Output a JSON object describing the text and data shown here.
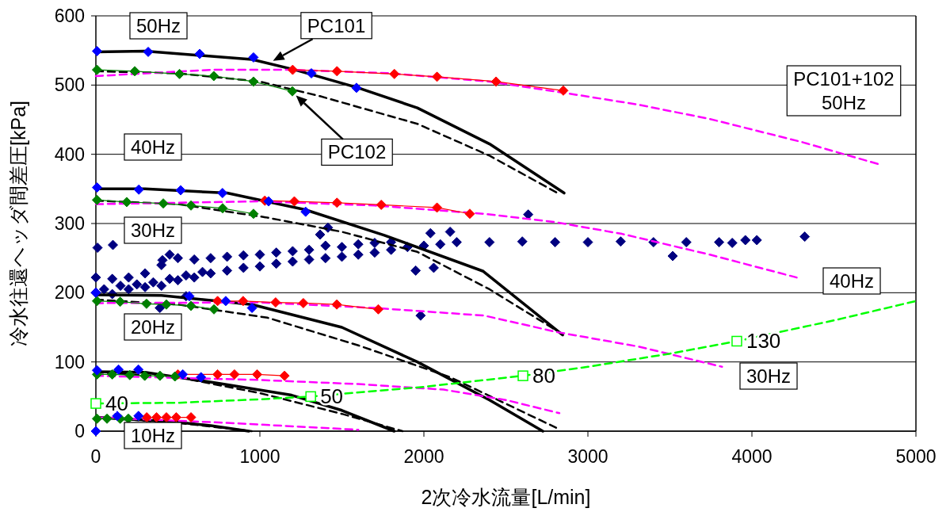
{
  "chart_data": {
    "type": "line",
    "xlabel": "2次冷水流量[L/min]",
    "ylabel": "冷水往還ヘッダ間差圧[kPa]",
    "xlim": [
      0,
      5000
    ],
    "xticks": [
      0,
      1000,
      2000,
      3000,
      4000,
      5000
    ],
    "ylim": [
      0,
      600
    ],
    "yticks": [
      0,
      100,
      200,
      300,
      400,
      500,
      600
    ],
    "grid": "y",
    "series": [
      {
        "type": "scatter",
        "color": "#000080",
        "marker": "diamond",
        "x": [
          0,
          50,
          100,
          150,
          200,
          250,
          300,
          350,
          400,
          450,
          500,
          550,
          600,
          650,
          700,
          800,
          900,
          1000,
          1100,
          1200,
          1300,
          1400,
          1500,
          1600,
          1700,
          1800,
          1900,
          2000,
          2100,
          0,
          100,
          200,
          300,
          400,
          450,
          500,
          600,
          700,
          800,
          900,
          1000,
          1100,
          1200,
          1300,
          1400,
          1500,
          1600,
          1700,
          1800,
          2200,
          2400,
          2600,
          2800,
          3000,
          3200,
          3400,
          3600,
          3800,
          3880,
          10,
          104,
          406,
          390,
          550,
          1950,
          2060,
          2040,
          2160,
          1367,
          1415,
          1980,
          2636,
          3517,
          3960,
          4030,
          4322
        ],
        "values": [
          200,
          205,
          198,
          210,
          205,
          212,
          208,
          215,
          210,
          220,
          218,
          225,
          222,
          230,
          228,
          232,
          236,
          238,
          242,
          245,
          248,
          250,
          252,
          255,
          258,
          262,
          266,
          268,
          270,
          222,
          220,
          222,
          228,
          240,
          255,
          250,
          248,
          250,
          252,
          254,
          255,
          258,
          260,
          262,
          268,
          266,
          270,
          272,
          273,
          273,
          273,
          274,
          273,
          273,
          274,
          273,
          273,
          273,
          272,
          265,
          269,
          247,
          178,
          195,
          232,
          236,
          286,
          288,
          284,
          294,
          167,
          313,
          253,
          276,
          276,
          281
        ]
      },
      {
        "type": "line",
        "color": "#000000",
        "line_style": "solid",
        "marker": "none",
        "x": [
          0,
          300,
          952,
          1215,
          1600,
          1960,
          2400,
          2855
        ],
        "values": [
          548,
          549,
          537,
          522,
          496,
          467,
          415,
          344
        ]
      },
      {
        "type": "line",
        "color": "#000000",
        "line_style": "solid",
        "marker": "none",
        "x": [
          0,
          300,
          800,
          1275,
          1759,
          2362,
          2846
        ],
        "values": [
          350,
          350,
          344,
          320,
          283,
          231,
          139
        ]
      },
      {
        "type": "line",
        "color": "#000000",
        "line_style": "solid",
        "marker": "none",
        "x": [
          0,
          400,
          952,
          1500,
          1960,
          2400,
          2725
        ],
        "values": [
          197,
          196,
          183,
          150,
          100,
          45,
          0
        ]
      },
      {
        "type": "line",
        "color": "#000000",
        "line_style": "solid",
        "marker": "none",
        "x": [
          0,
          300,
          752,
          1193,
          1500,
          1819
        ],
        "values": [
          86,
          85,
          69,
          52,
          30,
          0
        ]
      },
      {
        "type": "line",
        "color": "#000000",
        "line_style": "solid",
        "marker": "none",
        "x": [
          0,
          450,
          700,
          932
        ],
        "values": [
          20,
          14,
          8,
          0
        ]
      },
      {
        "type": "line",
        "color": "#000000",
        "line_style": "dashed",
        "marker": "none",
        "x": [
          0,
          500,
          1000,
          1366,
          1960,
          2400,
          2815
        ],
        "values": [
          520,
          517,
          505,
          484,
          444,
          398,
          344
        ]
      },
      {
        "type": "line",
        "color": "#000000",
        "line_style": "dashed",
        "marker": "none",
        "x": [
          0,
          500,
          1034,
          1500,
          1960,
          2400,
          2846
        ],
        "values": [
          333,
          328,
          309,
          288,
          259,
          205,
          140
        ]
      },
      {
        "type": "line",
        "color": "#000000",
        "line_style": "dashed",
        "marker": "none",
        "x": [
          0,
          500,
          1045,
          1600,
          2160,
          2806
        ],
        "values": [
          190,
          183,
          164,
          124,
          78,
          5
        ]
      },
      {
        "type": "line",
        "color": "#000000",
        "line_style": "dashed",
        "marker": "none",
        "x": [
          0,
          500,
          1000,
          1500,
          1870
        ],
        "values": [
          85,
          78,
          55,
          25,
          0
        ]
      },
      {
        "type": "line",
        "color": "#000000",
        "line_style": "dashed",
        "marker": "none",
        "x": [
          0,
          500,
          950
        ],
        "values": [
          20,
          12,
          0
        ]
      },
      {
        "type": "line",
        "color": "#ff00ff",
        "line_style": "dashed",
        "marker": "none",
        "x": [
          0,
          700,
          1200,
          1800,
          2400,
          2850,
          3300,
          3744,
          4300,
          4783
        ],
        "values": [
          513,
          522,
          522,
          517,
          505,
          489,
          472,
          451,
          418,
          385
        ]
      },
      {
        "type": "line",
        "color": "#ff00ff",
        "line_style": "dashed",
        "marker": "none",
        "x": [
          0,
          1000,
          1700,
          2367,
          2800,
          3208,
          3744,
          4273
        ],
        "values": [
          328,
          332,
          326,
          314,
          302,
          285,
          255,
          222
        ]
      },
      {
        "type": "line",
        "color": "#ff00ff",
        "line_style": "dashed",
        "marker": "none",
        "x": [
          0,
          1000,
          1700,
          2367,
          2815,
          3313,
          3818
        ],
        "values": [
          185,
          186,
          178,
          167,
          143,
          122,
          93
        ]
      },
      {
        "type": "line",
        "color": "#ff00ff",
        "line_style": "dashed",
        "marker": "none",
        "x": [
          0,
          1000,
          1600,
          2120,
          2500,
          2826
        ],
        "values": [
          80,
          74,
          68,
          60,
          45,
          26
        ]
      },
      {
        "type": "line",
        "color": "#ff00ff",
        "line_style": "dashed",
        "marker": "none",
        "x": [
          0,
          800,
          1600
        ],
        "values": [
          20,
          12,
          2
        ]
      },
      {
        "type": "line",
        "color": "#ff0000",
        "line_style": "solid",
        "marker": "diamond",
        "x": [
          1200,
          1470,
          1820,
          2080,
          2440,
          2850
        ],
        "values": [
          522,
          520,
          516,
          512,
          505,
          492
        ]
      },
      {
        "type": "line",
        "color": "#ff0000",
        "line_style": "solid",
        "marker": "diamond",
        "x": [
          1030,
          1210,
          1470,
          1740,
          2080,
          2280
        ],
        "values": [
          333,
          332,
          330,
          327,
          323,
          314
        ]
      },
      {
        "type": "line",
        "color": "#ff0000",
        "line_style": "solid",
        "marker": "diamond",
        "x": [
          742,
          898,
          1096,
          1265,
          1469,
          1722
        ],
        "values": [
          188,
          188,
          186,
          185,
          183,
          176
        ]
      },
      {
        "type": "line",
        "color": "#ff0000",
        "line_style": "solid",
        "marker": "diamond",
        "x": [
          500,
          742,
          845,
          983,
          1150
        ],
        "values": [
          82,
          82,
          82,
          82,
          80
        ]
      },
      {
        "type": "line",
        "color": "#ff0000",
        "line_style": "solid",
        "marker": "diamond",
        "x": [
          310,
          370,
          430,
          490,
          580
        ],
        "values": [
          20,
          20,
          20,
          20,
          20
        ]
      },
      {
        "type": "line",
        "color": "#008000",
        "line_style": "solid",
        "marker": "diamond",
        "x": [
          7,
          237,
          510,
          719,
          961,
          1198
        ],
        "values": [
          522,
          520,
          516,
          513,
          505,
          491
        ]
      },
      {
        "type": "line",
        "color": "#008000",
        "line_style": "solid",
        "marker": "diamond",
        "x": [
          7,
          188,
          411,
          580,
          773,
          961
        ],
        "values": [
          334,
          331,
          329,
          326,
          322,
          314
        ]
      },
      {
        "type": "line",
        "color": "#008000",
        "line_style": "solid",
        "marker": "diamond",
        "x": [
          7,
          148,
          309,
          430,
          580,
          720
        ],
        "values": [
          188,
          187,
          184,
          183,
          181,
          176
        ]
      },
      {
        "type": "line",
        "color": "#008000",
        "line_style": "solid",
        "marker": "diamond",
        "x": [
          7,
          100,
          207,
          298,
          391,
          482
        ],
        "values": [
          82,
          82,
          81,
          80,
          80,
          79
        ]
      },
      {
        "type": "line",
        "color": "#008000",
        "line_style": "solid",
        "marker": "diamond",
        "x": [
          7,
          68,
          148,
          198
        ],
        "values": [
          18,
          18,
          18,
          18
        ]
      },
      {
        "type": "scatter",
        "color": "#0000ff",
        "marker": "diamond",
        "x": [
          7,
          319,
          633,
          961,
          1314,
          1589
        ],
        "values": [
          549,
          548,
          545,
          540,
          517,
          496
        ]
      },
      {
        "type": "scatter",
        "color": "#0000ff",
        "marker": "diamond",
        "x": [
          7,
          262,
          517,
          772,
          1053,
          1279
        ],
        "values": [
          352,
          349,
          348,
          344,
          332,
          317
        ]
      },
      {
        "type": "scatter",
        "color": "#0000ff",
        "marker": "diamond",
        "x": [
          0,
          570,
          792,
          952
        ],
        "values": [
          200,
          195,
          188,
          178
        ]
      },
      {
        "type": "scatter",
        "color": "#0000ff",
        "marker": "diamond",
        "x": [
          7,
          138,
          259,
          530,
          641
        ],
        "values": [
          88,
          89,
          89,
          82,
          78
        ]
      },
      {
        "type": "scatter",
        "color": "#0000ff",
        "marker": "diamond",
        "x": [
          0,
          130,
          260
        ],
        "values": [
          0,
          22,
          22
        ]
      },
      {
        "type": "line",
        "color": "#00ff00",
        "line_style": "dashed",
        "marker": "none",
        "x": [
          0,
          500,
          1000,
          1310,
          2000,
          2604,
          3000,
          3500,
          3908,
          4500,
          5000
        ],
        "values": [
          40,
          41,
          46,
          50,
          64,
          80,
          93,
          112,
          130,
          160,
          188
        ]
      },
      {
        "type": "scatter",
        "color": "#00ff00",
        "marker": "square",
        "x": [
          0,
          1310,
          2604,
          3908
        ],
        "values": [
          40,
          50,
          80,
          130
        ],
        "value_labels": [
          "40",
          "50",
          "80",
          "130"
        ]
      }
    ],
    "annotations": [
      "50Hz",
      "40Hz",
      "30Hz",
      "20Hz",
      "10Hz",
      {
        "text": "PC101",
        "x": 1080,
        "y": 535
      },
      {
        "text": "PC102",
        "x": 1220,
        "y": 485
      },
      "PC101+102\n50Hz",
      "40Hz",
      "30Hz"
    ]
  }
}
